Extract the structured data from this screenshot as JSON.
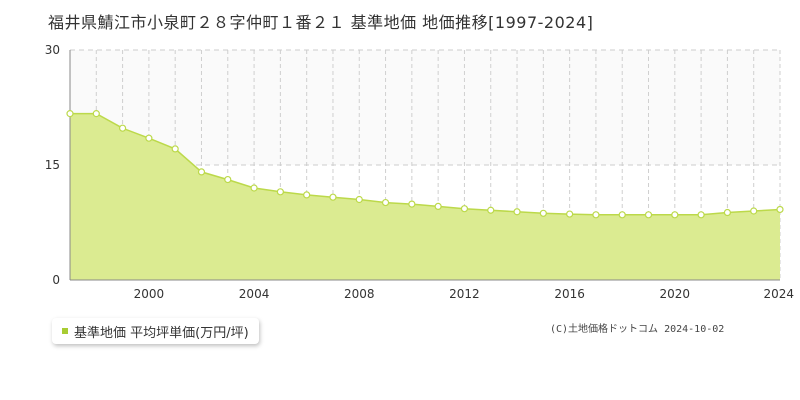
{
  "title": "福井県鯖江市小泉町２８字仲町１番２１ 基準地価 地価推移[1997-2024]",
  "copyright": "(C)土地価格ドットコム 2024-10-02",
  "colors": {
    "fill": "#dbeb91",
    "line": "#bcd94a",
    "marker_fill": "#ffffff",
    "legend": "#a8cc33"
  },
  "chart_data": {
    "type": "area",
    "title": "福井県鯖江市小泉町２８字仲町１番２１ 基準地価 地価推移[1997-2024]",
    "xlabel": "",
    "ylabel": "",
    "xlim": [
      1997,
      2024
    ],
    "ylim": [
      0,
      30
    ],
    "x_ticks": [
      "2000",
      "2004",
      "2008",
      "2012",
      "2016",
      "2020",
      "2024"
    ],
    "y_ticks": [
      "0",
      "15",
      "30"
    ],
    "grid": true,
    "legend_position": "bottom-left",
    "series": [
      {
        "name": "基準地価 平均坪単価(万円/坪)",
        "x": [
          1997,
          1998,
          1999,
          2000,
          2001,
          2002,
          2003,
          2004,
          2005,
          2006,
          2007,
          2008,
          2009,
          2010,
          2011,
          2012,
          2013,
          2014,
          2015,
          2016,
          2017,
          2018,
          2019,
          2020,
          2021,
          2022,
          2023,
          2024
        ],
        "values": [
          21.7,
          21.7,
          19.8,
          18.5,
          17.1,
          14.1,
          13.1,
          12.0,
          11.5,
          11.1,
          10.8,
          10.5,
          10.1,
          9.9,
          9.6,
          9.3,
          9.1,
          8.9,
          8.7,
          8.6,
          8.5,
          8.5,
          8.5,
          8.5,
          8.5,
          8.8,
          9.0,
          9.2
        ]
      }
    ]
  }
}
